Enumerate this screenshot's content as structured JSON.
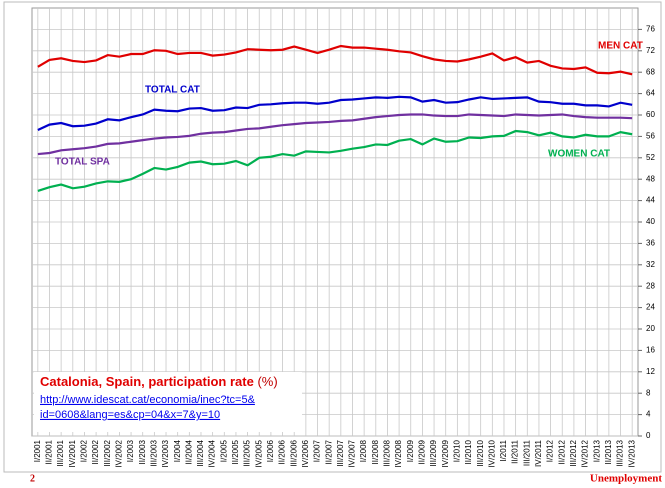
{
  "chart_data": {
    "type": "line",
    "title": "Catalonia, Spain, participation rate",
    "title_unit": "(%)",
    "source_lines": [
      "http://www.idescat.cat/economia/inec?tc=5&",
      "id=0608&lang=es&cp=04&x=7&y=10"
    ],
    "categories": [
      "I/2001",
      "II/2001",
      "III/2001",
      "IV/2001",
      "I/2002",
      "II/2002",
      "III/2002",
      "IV/2002",
      "I/2003",
      "II/2003",
      "III/2003",
      "IV/2003",
      "I/2004",
      "II/2004",
      "III/2004",
      "IV/2004",
      "I/2005",
      "II/2005",
      "III/2005",
      "IV/2005",
      "I/2006",
      "II/2006",
      "III/2006",
      "IV/2006",
      "I/2007",
      "II/2007",
      "III/2007",
      "IV/2007",
      "I/2008",
      "II/2008",
      "III/2008",
      "IV/2008",
      "I/2009",
      "II/2009",
      "III/2009",
      "IV/2009",
      "I/2010",
      "II/2010",
      "III/2010",
      "IV/2010",
      "I/2011",
      "II/2011",
      "III/2011",
      "IV/2011",
      "I/2012",
      "II/2012",
      "III/2012",
      "IV/2012",
      "I/2013",
      "II/2013",
      "III/2013",
      "IV/2013"
    ],
    "series": [
      {
        "name": "MEN CAT",
        "color": "#e00000",
        "values": [
          69.0,
          70.3,
          70.6,
          70.1,
          69.9,
          70.2,
          71.2,
          70.9,
          71.4,
          71.4,
          72.1,
          72.0,
          71.4,
          71.6,
          71.6,
          71.1,
          71.3,
          71.7,
          72.3,
          72.2,
          72.1,
          72.2,
          72.8,
          72.2,
          71.6,
          72.2,
          72.9,
          72.6,
          72.6,
          72.4,
          72.2,
          71.9,
          71.7,
          71.0,
          70.4,
          70.1,
          70.0,
          70.4,
          70.9,
          71.5,
          70.2,
          70.8,
          69.8,
          70.1,
          69.2,
          68.7,
          68.6,
          68.9,
          67.9,
          67.8,
          68.1,
          67.6
        ]
      },
      {
        "name": "TOTAL CAT",
        "color": "#0000cc",
        "values": [
          57.2,
          58.2,
          58.5,
          57.9,
          58.0,
          58.4,
          59.2,
          59.0,
          59.6,
          60.1,
          61.0,
          60.8,
          60.7,
          61.2,
          61.3,
          60.8,
          60.9,
          61.4,
          61.3,
          61.9,
          62.0,
          62.2,
          62.3,
          62.3,
          62.1,
          62.3,
          62.8,
          62.9,
          63.1,
          63.3,
          63.2,
          63.4,
          63.3,
          62.5,
          62.8,
          62.3,
          62.4,
          62.9,
          63.3,
          63.0,
          63.1,
          63.2,
          63.3,
          62.5,
          62.4,
          62.1,
          62.1,
          61.8,
          61.8,
          61.6,
          62.3,
          61.9
        ]
      },
      {
        "name": "TOTAL SPA",
        "color": "#7030a0",
        "values": [
          52.7,
          52.9,
          53.4,
          53.6,
          53.8,
          54.1,
          54.6,
          54.7,
          55.0,
          55.3,
          55.6,
          55.8,
          55.9,
          56.1,
          56.5,
          56.7,
          56.8,
          57.1,
          57.4,
          57.5,
          57.8,
          58.1,
          58.3,
          58.5,
          58.6,
          58.7,
          58.9,
          59.0,
          59.3,
          59.6,
          59.8,
          60.0,
          60.1,
          60.1,
          59.9,
          59.8,
          59.8,
          60.1,
          60.0,
          59.9,
          59.8,
          60.1,
          60.0,
          59.9,
          60.0,
          60.1,
          59.8,
          59.6,
          59.5,
          59.5,
          59.5,
          59.4
        ]
      },
      {
        "name": "WOMEN CAT",
        "color": "#00b050",
        "values": [
          45.8,
          46.5,
          47.0,
          46.3,
          46.6,
          47.2,
          47.6,
          47.5,
          48.0,
          49.0,
          50.1,
          49.8,
          50.3,
          51.1,
          51.3,
          50.8,
          50.9,
          51.4,
          50.6,
          52.0,
          52.2,
          52.7,
          52.4,
          53.2,
          53.1,
          53.0,
          53.3,
          53.7,
          54.0,
          54.5,
          54.4,
          55.2,
          55.5,
          54.5,
          55.6,
          55.0,
          55.1,
          55.8,
          55.7,
          56.0,
          56.1,
          57.0,
          56.8,
          56.2,
          56.7,
          56.0,
          55.8,
          56.3,
          56.0,
          56.0,
          56.8,
          56.4
        ]
      }
    ],
    "ylim": [
      0,
      80
    ],
    "yticks": [
      0,
      4,
      8,
      12,
      16,
      20,
      24,
      28,
      32,
      36,
      40,
      44,
      48,
      52,
      56,
      60,
      64,
      68,
      72,
      76
    ],
    "grid": true
  },
  "footer": {
    "page": "2",
    "section": "Unemployment"
  }
}
